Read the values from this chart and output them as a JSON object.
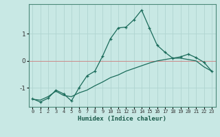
{
  "xlabel": "Humidex (Indice chaleur)",
  "ylabel": "",
  "bg_color": "#c8e8e4",
  "grid_color_v": "#b0d4d0",
  "grid_color_h": "#d0a0a0",
  "line_color": "#1a6b5a",
  "hline_color": "#cc8888",
  "xlim": [
    -0.5,
    23.5
  ],
  "ylim": [
    -1.7,
    2.1
  ],
  "yticks": [
    -1,
    0,
    1
  ],
  "xticks": [
    0,
    1,
    2,
    3,
    4,
    5,
    6,
    7,
    8,
    9,
    10,
    11,
    12,
    13,
    14,
    15,
    16,
    17,
    18,
    19,
    20,
    21,
    22,
    23
  ],
  "series1_x": [
    0,
    1,
    2,
    3,
    4,
    5,
    6,
    7,
    8,
    9,
    10,
    11,
    12,
    13,
    14,
    15,
    16,
    17,
    18,
    19,
    20,
    21,
    22,
    23
  ],
  "series1_y": [
    -1.4,
    -1.52,
    -1.38,
    -1.08,
    -1.22,
    -1.48,
    -0.98,
    -0.55,
    -0.38,
    0.18,
    0.82,
    1.22,
    1.25,
    1.52,
    1.88,
    1.22,
    0.58,
    0.32,
    0.1,
    0.15,
    0.25,
    0.12,
    -0.05,
    -0.38
  ],
  "series2_x": [
    0,
    1,
    2,
    3,
    4,
    5,
    6,
    7,
    8,
    9,
    10,
    11,
    12,
    13,
    14,
    15,
    16,
    17,
    18,
    19,
    20,
    21,
    22,
    23
  ],
  "series2_y": [
    -1.42,
    -1.45,
    -1.32,
    -1.12,
    -1.28,
    -1.32,
    -1.18,
    -1.08,
    -0.92,
    -0.78,
    -0.62,
    -0.52,
    -0.38,
    -0.28,
    -0.18,
    -0.08,
    0.0,
    0.05,
    0.1,
    0.1,
    0.05,
    0.0,
    -0.22,
    -0.38
  ]
}
